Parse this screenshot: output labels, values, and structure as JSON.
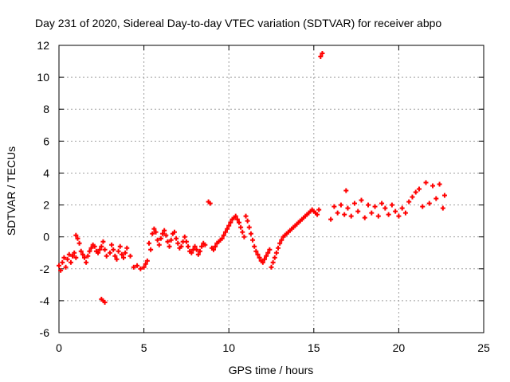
{
  "chart_data": {
    "type": "scatter",
    "title": "Day 231 of 2020, Sidereal Day-to-day VTEC variation (SDTVAR) for receiver abpo",
    "xlabel": "GPS time / hours",
    "ylabel": "SDTVAR / TECUs",
    "xlim": [
      0,
      25
    ],
    "ylim": [
      -6,
      12
    ],
    "xticks": [
      0,
      5,
      10,
      15,
      20,
      25
    ],
    "yticks": [
      -6,
      -4,
      -2,
      0,
      2,
      4,
      6,
      8,
      10,
      12
    ],
    "grid": true,
    "marker_color": "#ff0000",
    "series": [
      {
        "name": "SDTVAR",
        "points": [
          [
            0.0,
            -1.8
          ],
          [
            0.1,
            -2.1
          ],
          [
            0.2,
            -1.6
          ],
          [
            0.3,
            -1.3
          ],
          [
            0.4,
            -1.9
          ],
          [
            0.5,
            -1.4
          ],
          [
            0.6,
            -1.1
          ],
          [
            0.7,
            -1.6
          ],
          [
            0.8,
            -1.2
          ],
          [
            0.9,
            -1.0
          ],
          [
            1.0,
            -1.3
          ],
          [
            1.0,
            0.1
          ],
          [
            1.1,
            -0.1
          ],
          [
            1.2,
            -0.4
          ],
          [
            1.3,
            -0.9
          ],
          [
            1.4,
            -1.1
          ],
          [
            1.5,
            -1.3
          ],
          [
            1.6,
            -1.6
          ],
          [
            1.7,
            -1.2
          ],
          [
            1.8,
            -0.9
          ],
          [
            1.9,
            -0.7
          ],
          [
            2.0,
            -0.5
          ],
          [
            2.1,
            -0.6
          ],
          [
            2.2,
            -0.9
          ],
          [
            2.3,
            -1.0
          ],
          [
            2.4,
            -0.8
          ],
          [
            2.5,
            -0.6
          ],
          [
            2.6,
            -0.3
          ],
          [
            2.7,
            -0.8
          ],
          [
            2.8,
            -1.2
          ],
          [
            2.5,
            -3.9
          ],
          [
            2.6,
            -4.0
          ],
          [
            2.7,
            -4.1
          ],
          [
            3.0,
            -1.0
          ],
          [
            3.1,
            -0.5
          ],
          [
            3.2,
            -0.8
          ],
          [
            3.3,
            -1.2
          ],
          [
            3.4,
            -1.4
          ],
          [
            3.5,
            -0.9
          ],
          [
            3.6,
            -0.6
          ],
          [
            3.7,
            -1.1
          ],
          [
            3.8,
            -1.3
          ],
          [
            3.9,
            -1.0
          ],
          [
            4.0,
            -0.7
          ],
          [
            4.2,
            -1.2
          ],
          [
            4.4,
            -1.9
          ],
          [
            4.6,
            -1.8
          ],
          [
            4.8,
            -2.0
          ],
          [
            5.0,
            -1.9
          ],
          [
            5.1,
            -1.7
          ],
          [
            5.2,
            -1.5
          ],
          [
            5.3,
            -0.4
          ],
          [
            5.4,
            -0.8
          ],
          [
            5.5,
            0.2
          ],
          [
            5.6,
            0.5
          ],
          [
            5.7,
            0.3
          ],
          [
            5.8,
            -0.2
          ],
          [
            5.9,
            -0.5
          ],
          [
            6.0,
            -0.1
          ],
          [
            6.1,
            0.2
          ],
          [
            6.2,
            0.4
          ],
          [
            6.3,
            0.1
          ],
          [
            6.4,
            -0.3
          ],
          [
            6.5,
            -0.6
          ],
          [
            6.6,
            -0.2
          ],
          [
            6.7,
            0.2
          ],
          [
            6.8,
            0.3
          ],
          [
            6.9,
            -0.1
          ],
          [
            7.0,
            -0.4
          ],
          [
            7.1,
            -0.7
          ],
          [
            7.2,
            -0.6
          ],
          [
            7.3,
            -0.3
          ],
          [
            7.4,
            0.0
          ],
          [
            7.5,
            -0.3
          ],
          [
            7.6,
            -0.6
          ],
          [
            7.7,
            -0.9
          ],
          [
            7.8,
            -1.0
          ],
          [
            7.9,
            -0.8
          ],
          [
            8.0,
            -0.6
          ],
          [
            8.1,
            -0.8
          ],
          [
            8.2,
            -1.1
          ],
          [
            8.3,
            -0.9
          ],
          [
            8.4,
            -0.6
          ],
          [
            8.5,
            -0.4
          ],
          [
            8.6,
            -0.5
          ],
          [
            8.8,
            2.2
          ],
          [
            8.9,
            2.1
          ],
          [
            9.0,
            -0.7
          ],
          [
            9.1,
            -0.8
          ],
          [
            9.2,
            -0.6
          ],
          [
            9.3,
            -0.4
          ],
          [
            9.4,
            -0.3
          ],
          [
            9.5,
            -0.2
          ],
          [
            9.6,
            -0.1
          ],
          [
            9.7,
            0.1
          ],
          [
            9.8,
            0.3
          ],
          [
            9.9,
            0.5
          ],
          [
            10.0,
            0.7
          ],
          [
            10.1,
            0.9
          ],
          [
            10.2,
            1.1
          ],
          [
            10.3,
            1.2
          ],
          [
            10.4,
            1.3
          ],
          [
            10.5,
            1.1
          ],
          [
            10.6,
            0.9
          ],
          [
            10.7,
            0.6
          ],
          [
            10.8,
            0.3
          ],
          [
            10.9,
            0.0
          ],
          [
            11.0,
            1.3
          ],
          [
            11.1,
            1.0
          ],
          [
            11.2,
            0.6
          ],
          [
            11.3,
            0.2
          ],
          [
            11.4,
            -0.2
          ],
          [
            11.5,
            -0.6
          ],
          [
            11.6,
            -0.9
          ],
          [
            11.7,
            -1.1
          ],
          [
            11.8,
            -1.3
          ],
          [
            11.9,
            -1.5
          ],
          [
            12.0,
            -1.6
          ],
          [
            12.1,
            -1.4
          ],
          [
            12.2,
            -1.2
          ],
          [
            12.3,
            -1.0
          ],
          [
            12.4,
            -0.8
          ],
          [
            12.5,
            -1.9
          ],
          [
            12.6,
            -1.6
          ],
          [
            12.7,
            -1.3
          ],
          [
            12.8,
            -1.0
          ],
          [
            12.9,
            -0.7
          ],
          [
            13.0,
            -0.4
          ],
          [
            13.1,
            -0.2
          ],
          [
            13.2,
            0.0
          ],
          [
            13.3,
            0.1
          ],
          [
            13.4,
            0.2
          ],
          [
            13.5,
            0.3
          ],
          [
            13.6,
            0.4
          ],
          [
            13.7,
            0.5
          ],
          [
            13.8,
            0.6
          ],
          [
            13.9,
            0.7
          ],
          [
            14.0,
            0.8
          ],
          [
            14.1,
            0.9
          ],
          [
            14.2,
            1.0
          ],
          [
            14.3,
            1.1
          ],
          [
            14.4,
            1.2
          ],
          [
            14.5,
            1.3
          ],
          [
            14.6,
            1.4
          ],
          [
            14.7,
            1.5
          ],
          [
            14.8,
            1.6
          ],
          [
            14.9,
            1.7
          ],
          [
            15.0,
            1.6
          ],
          [
            15.1,
            1.5
          ],
          [
            15.2,
            1.4
          ],
          [
            15.3,
            1.7
          ],
          [
            15.4,
            11.3
          ],
          [
            15.5,
            11.5
          ],
          [
            16.0,
            1.1
          ],
          [
            16.2,
            1.9
          ],
          [
            16.4,
            1.5
          ],
          [
            16.6,
            2.0
          ],
          [
            16.8,
            1.4
          ],
          [
            16.9,
            2.9
          ],
          [
            17.0,
            1.8
          ],
          [
            17.2,
            1.3
          ],
          [
            17.4,
            2.1
          ],
          [
            17.6,
            1.6
          ],
          [
            17.8,
            2.3
          ],
          [
            18.0,
            1.2
          ],
          [
            18.2,
            2.0
          ],
          [
            18.4,
            1.5
          ],
          [
            18.6,
            1.9
          ],
          [
            18.8,
            1.3
          ],
          [
            19.0,
            2.1
          ],
          [
            19.2,
            1.8
          ],
          [
            19.4,
            1.4
          ],
          [
            19.6,
            2.0
          ],
          [
            19.8,
            1.6
          ],
          [
            20.0,
            1.3
          ],
          [
            20.2,
            1.8
          ],
          [
            20.4,
            1.5
          ],
          [
            20.6,
            2.2
          ],
          [
            20.8,
            2.5
          ],
          [
            21.0,
            2.8
          ],
          [
            21.2,
            3.0
          ],
          [
            21.4,
            1.9
          ],
          [
            21.6,
            3.4
          ],
          [
            21.8,
            2.1
          ],
          [
            22.0,
            3.2
          ],
          [
            22.2,
            2.4
          ],
          [
            22.4,
            3.3
          ],
          [
            22.6,
            1.8
          ],
          [
            22.7,
            2.6
          ]
        ]
      }
    ]
  }
}
